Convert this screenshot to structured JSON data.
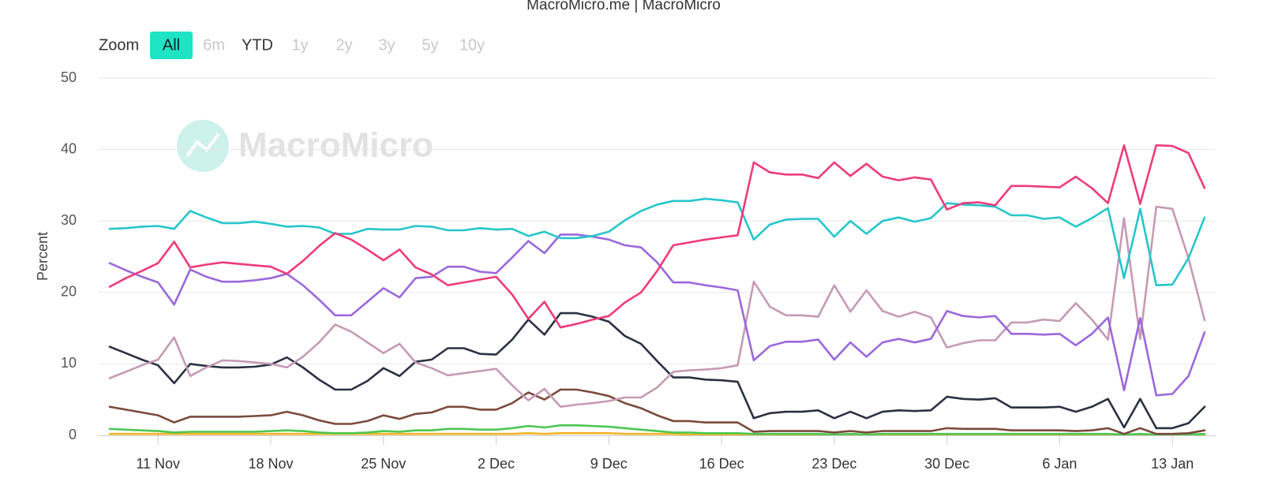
{
  "chart_data": {
    "type": "line",
    "credits": "MacroMicro.me | MacroMicro",
    "watermark": "MacroMicro",
    "y_label": "Percent",
    "zoom": {
      "label": "Zoom",
      "buttons": [
        {
          "label": "All",
          "state": "selected"
        },
        {
          "label": "6m",
          "state": "disabled"
        },
        {
          "label": "YTD",
          "state": "normal"
        },
        {
          "label": "1y",
          "state": "disabled"
        },
        {
          "label": "2y",
          "state": "disabled"
        },
        {
          "label": "3y",
          "state": "disabled"
        },
        {
          "label": "5y",
          "state": "disabled"
        },
        {
          "label": "10y",
          "state": "disabled"
        }
      ]
    },
    "categories": [
      null,
      null,
      null,
      "11 Nov",
      null,
      null,
      null,
      null,
      null,
      null,
      "18 Nov",
      null,
      null,
      null,
      null,
      null,
      null,
      "25 Nov",
      null,
      null,
      null,
      null,
      null,
      null,
      "2 Dec",
      null,
      null,
      null,
      null,
      null,
      null,
      "9 Dec",
      null,
      null,
      null,
      null,
      null,
      null,
      "16 Dec",
      null,
      null,
      null,
      null,
      null,
      null,
      "23 Dec",
      null,
      null,
      null,
      null,
      null,
      null,
      "30 Dec",
      null,
      null,
      null,
      null,
      null,
      null,
      "6 Jan",
      null,
      null,
      null,
      null,
      null,
      null,
      "13 Jan",
      null,
      null
    ],
    "ylim": [
      0,
      50
    ],
    "yticks": [
      0,
      10,
      20,
      30,
      40,
      50
    ],
    "grid": true,
    "series": [
      {
        "color": "#f5b324",
        "values": [
          0.2,
          0.2,
          0.2,
          0.2,
          0.2,
          0.2,
          0.2,
          0.2,
          0.2,
          0.2,
          0.2,
          0.2,
          0.2,
          0.2,
          0.2,
          0.2,
          0.2,
          0.2,
          0.2,
          0.2,
          0.2,
          0.2,
          0.2,
          0.2,
          0.2,
          0.2,
          0.3,
          0.2,
          0.3,
          0.3,
          0.3,
          0.3,
          0.2,
          0.2,
          0.2,
          0.2,
          0.1,
          0.1,
          0.1,
          0.1,
          0.1,
          0.1,
          0.1,
          0.1,
          0.1,
          0.1,
          0.1,
          0.1,
          0.1,
          0.1,
          0.1,
          0.1,
          0.1,
          0.1,
          0.1,
          0.1,
          0.1,
          0.1,
          0.1,
          0.1,
          0.1,
          0.1,
          0.1,
          0.1,
          0.1,
          0.1,
          0.1,
          0.1,
          0.1
        ]
      },
      {
        "color": "#4cc752",
        "values": [
          0.9,
          0.8,
          0.7,
          0.6,
          0.4,
          0.5,
          0.5,
          0.5,
          0.5,
          0.5,
          0.6,
          0.7,
          0.6,
          0.4,
          0.3,
          0.3,
          0.4,
          0.6,
          0.5,
          0.7,
          0.7,
          0.9,
          0.9,
          0.8,
          0.8,
          1.0,
          1.3,
          1.1,
          1.4,
          1.4,
          1.3,
          1.2,
          1.0,
          0.8,
          0.6,
          0.4,
          0.4,
          0.3,
          0.3,
          0.3,
          0.2,
          0.2,
          0.2,
          0.2,
          0.2,
          0.1,
          0.2,
          0.1,
          0.2,
          0.2,
          0.2,
          0.2,
          0.2,
          0.2,
          0.2,
          0.2,
          0.2,
          0.2,
          0.2,
          0.2,
          0.2,
          0.2,
          0.2,
          0.1,
          0.2,
          0.1,
          0.1,
          0.1,
          0.2
        ]
      },
      {
        "color": "#7b4a3c",
        "values": [
          4.0,
          3.6,
          3.2,
          2.8,
          1.8,
          2.6,
          2.6,
          2.6,
          2.6,
          2.7,
          2.8,
          3.3,
          2.8,
          2.1,
          1.6,
          1.6,
          2.0,
          2.8,
          2.3,
          3.0,
          3.2,
          4.0,
          4.0,
          3.6,
          3.6,
          4.5,
          6.0,
          5.0,
          6.4,
          6.4,
          6.0,
          5.5,
          4.5,
          3.8,
          2.8,
          2.0,
          2.0,
          1.8,
          1.8,
          1.8,
          0.5,
          0.6,
          0.6,
          0.6,
          0.6,
          0.4,
          0.6,
          0.4,
          0.6,
          0.6,
          0.6,
          0.6,
          1.0,
          0.9,
          0.9,
          0.9,
          0.7,
          0.7,
          0.7,
          0.7,
          0.6,
          0.7,
          1.0,
          0.2,
          1.0,
          0.2,
          0.2,
          0.3,
          0.7
        ]
      },
      {
        "color": "#2b3142",
        "values": [
          12.4,
          11.5,
          10.6,
          9.8,
          7.3,
          10.0,
          9.7,
          9.5,
          9.5,
          9.6,
          9.9,
          10.9,
          9.5,
          7.8,
          6.4,
          6.4,
          7.6,
          9.4,
          8.3,
          10.3,
          10.6,
          12.2,
          12.2,
          11.4,
          11.3,
          13.4,
          16.2,
          14.1,
          17.1,
          17.1,
          16.6,
          15.9,
          13.9,
          12.8,
          10.4,
          8.1,
          8.1,
          7.8,
          7.7,
          7.5,
          2.4,
          3.1,
          3.3,
          3.3,
          3.5,
          2.4,
          3.3,
          2.4,
          3.3,
          3.5,
          3.4,
          3.5,
          5.4,
          5.1,
          5.0,
          5.2,
          3.9,
          3.9,
          3.9,
          4.0,
          3.3,
          4.0,
          5.1,
          1.1,
          5.1,
          1.0,
          1.0,
          1.7,
          4.0
        ]
      },
      {
        "color": "#c59ab5",
        "values": [
          8.0,
          8.9,
          9.8,
          10.6,
          13.7,
          8.3,
          9.5,
          10.5,
          10.4,
          10.2,
          10.0,
          9.5,
          11.0,
          13.0,
          15.5,
          14.5,
          13.0,
          11.5,
          12.8,
          10.2,
          9.4,
          8.4,
          8.7,
          9.0,
          9.3,
          7.0,
          4.9,
          6.5,
          4.0,
          4.3,
          4.5,
          4.8,
          5.3,
          5.3,
          6.7,
          8.9,
          9.1,
          9.2,
          9.4,
          9.8,
          21.5,
          18.0,
          16.8,
          16.8,
          16.6,
          21.0,
          17.3,
          20.3,
          17.4,
          16.6,
          17.3,
          16.5,
          12.3,
          12.9,
          13.3,
          13.3,
          15.8,
          15.8,
          16.2,
          16.0,
          18.5,
          16.2,
          13.4,
          30.4,
          13.5,
          32.0,
          31.7,
          24.8,
          16.1
        ]
      },
      {
        "color": "#9a68db",
        "values": [
          24.1,
          23.1,
          22.2,
          21.4,
          18.3,
          23.2,
          22.2,
          21.5,
          21.5,
          21.7,
          22.0,
          22.6,
          21.0,
          19.0,
          16.8,
          16.8,
          18.7,
          20.6,
          19.3,
          22.0,
          22.2,
          23.6,
          23.6,
          22.9,
          22.7,
          24.9,
          27.2,
          25.5,
          28.1,
          28.1,
          27.8,
          27.4,
          26.6,
          26.3,
          24.2,
          21.4,
          21.4,
          21.0,
          20.7,
          20.3,
          10.5,
          12.5,
          13.1,
          13.1,
          13.4,
          10.6,
          13.0,
          11.0,
          13.0,
          13.5,
          13.0,
          13.5,
          17.4,
          16.7,
          16.5,
          16.7,
          14.2,
          14.2,
          14.1,
          14.2,
          12.6,
          14.2,
          16.5,
          6.3,
          16.4,
          5.6,
          5.8,
          8.3,
          14.4
        ]
      },
      {
        "color": "#26c6ca",
        "values": [
          28.9,
          29.0,
          29.2,
          29.3,
          28.9,
          31.4,
          30.5,
          29.7,
          29.7,
          29.9,
          29.6,
          29.2,
          29.3,
          29.1,
          28.2,
          28.2,
          28.9,
          28.8,
          28.8,
          29.3,
          29.2,
          28.7,
          28.7,
          29.0,
          28.8,
          28.9,
          27.9,
          28.5,
          27.6,
          27.6,
          27.9,
          28.5,
          30.1,
          31.4,
          32.3,
          32.8,
          32.8,
          33.1,
          32.9,
          32.6,
          27.4,
          29.5,
          30.2,
          30.3,
          30.3,
          27.8,
          30.0,
          28.2,
          30.0,
          30.5,
          29.9,
          30.4,
          32.5,
          32.3,
          32.2,
          32.0,
          30.8,
          30.8,
          30.3,
          30.5,
          29.2,
          30.4,
          31.8,
          22.0,
          31.7,
          21.0,
          21.1,
          24.8,
          30.5
        ]
      },
      {
        "color": "#ee3b7a",
        "values": [
          20.8,
          22.0,
          23.0,
          24.1,
          27.1,
          23.5,
          23.9,
          24.2,
          24.0,
          23.8,
          23.6,
          22.6,
          24.4,
          26.5,
          28.3,
          27.4,
          26.0,
          24.5,
          26.0,
          23.5,
          22.5,
          21.0,
          21.4,
          21.8,
          22.2,
          19.7,
          16.3,
          18.7,
          15.1,
          15.6,
          16.2,
          16.7,
          18.6,
          20.0,
          23.0,
          26.6,
          27.0,
          27.4,
          27.7,
          28.0,
          38.2,
          36.8,
          36.5,
          36.5,
          36.0,
          38.2,
          36.3,
          38.0,
          36.2,
          35.7,
          36.1,
          35.8,
          31.6,
          32.5,
          32.6,
          32.2,
          34.9,
          34.9,
          34.8,
          34.7,
          36.2,
          34.6,
          32.5,
          40.6,
          32.4,
          40.6,
          40.5,
          39.5,
          34.6
        ]
      }
    ]
  }
}
